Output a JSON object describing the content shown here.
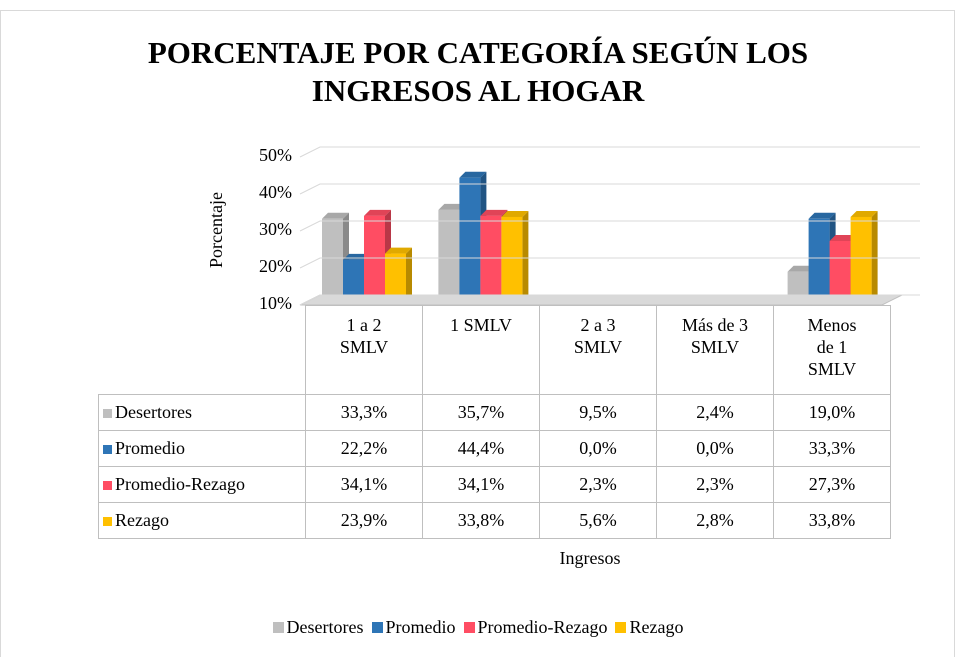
{
  "chart_data": {
    "type": "bar",
    "title": "PORCENTAJE  POR CATEGORÍA SEGÚN LOS\nINGRESOS AL HOGAR",
    "y_label": "Porcentaje",
    "x_label": "Ingresos",
    "categories": [
      "1 a 2 SMLV",
      "1 SMLV",
      "2 a 3 SMLV",
      "Más de 3 SMLV",
      "Menos de 1 SMLV"
    ],
    "series": [
      {
        "name": "Desertores",
        "color": "#bfbfbf",
        "values": [
          33.3,
          35.7,
          9.5,
          2.4,
          19.0
        ],
        "value_labels": [
          "33,3%",
          "35,7%",
          "9,5%",
          "2,4%",
          "19,0%"
        ]
      },
      {
        "name": "Promedio",
        "color": "#2e75b6",
        "values": [
          22.2,
          44.4,
          0.0,
          0.0,
          33.3
        ],
        "value_labels": [
          "22,2%",
          "44,4%",
          "0,0%",
          "0,0%",
          "33,3%"
        ]
      },
      {
        "name": "Promedio-Rezago",
        "color": "#ff4d63",
        "values": [
          34.1,
          34.1,
          2.3,
          2.3,
          27.3
        ],
        "value_labels": [
          "34,1%",
          "34,1%",
          "2,3%",
          "2,3%",
          "27,3%"
        ]
      },
      {
        "name": "Rezago",
        "color": "#ffc000",
        "values": [
          23.9,
          33.8,
          5.6,
          2.8,
          33.8
        ],
        "value_labels": [
          "23,9%",
          "33,8%",
          "5,6%",
          "2,8%",
          "33,8%"
        ]
      }
    ],
    "ylim": [
      10,
      50
    ],
    "yticks": [
      {
        "value": 10,
        "label": "10%"
      },
      {
        "value": 20,
        "label": "20%"
      },
      {
        "value": 30,
        "label": "30%"
      },
      {
        "value": 40,
        "label": "40%"
      },
      {
        "value": 50,
        "label": "50%"
      }
    ],
    "grid": true,
    "legend": "bottom"
  }
}
